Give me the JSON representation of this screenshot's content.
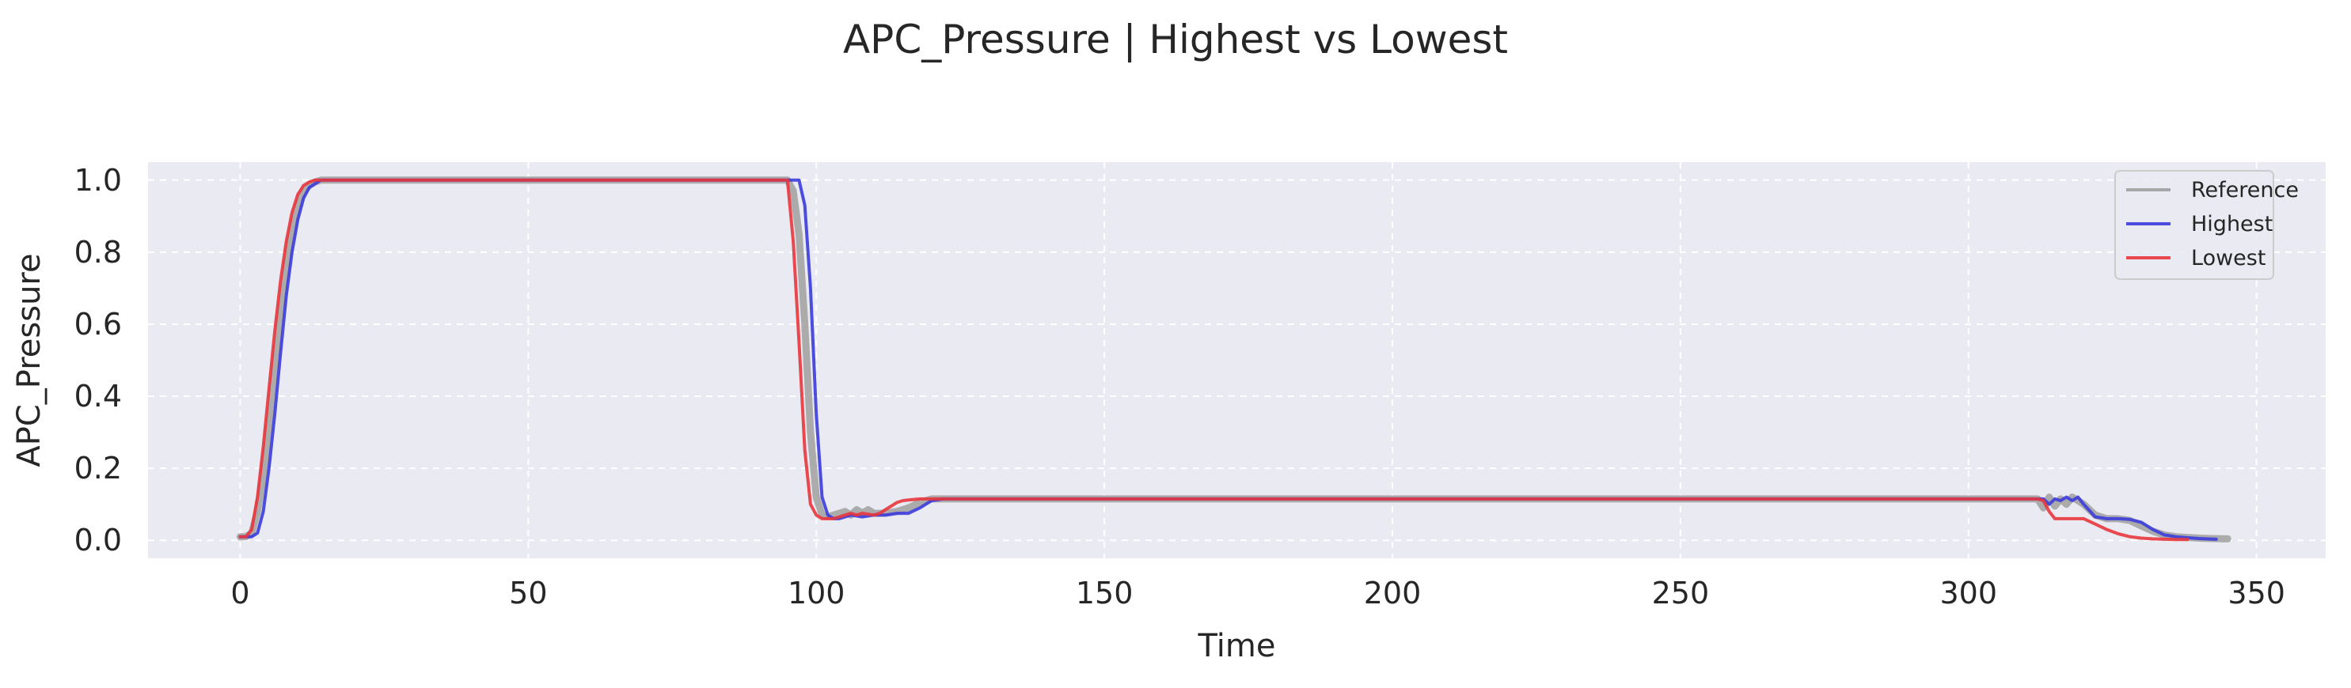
{
  "chart_data": {
    "type": "line",
    "title": "APC_Pressure | Highest vs Lowest",
    "xlabel": "Time",
    "ylabel": "APC_Pressure",
    "xlim": [
      -16,
      362
    ],
    "ylim": [
      -0.05,
      1.05
    ],
    "xticks": [
      0,
      50,
      100,
      150,
      200,
      250,
      300,
      350
    ],
    "yticks": [
      0.0,
      0.2,
      0.4,
      0.6,
      0.8,
      1.0
    ],
    "ytick_labels": [
      "0.0",
      "0.2",
      "0.4",
      "0.6",
      "0.8",
      "1.0"
    ],
    "grid": true,
    "legend_position": "top-right",
    "colors": {
      "background": "#eaeaf2",
      "reference": "#a0a0a0",
      "highest": "#3b3bdc",
      "lowest": "#e8363c"
    },
    "series": [
      {
        "name": "Reference",
        "color_key": "reference",
        "x": [
          0,
          1,
          2,
          3,
          4,
          5,
          6,
          7,
          8,
          9,
          10,
          11,
          12,
          13,
          14,
          15,
          16,
          18,
          20,
          50,
          95,
          96,
          97,
          98,
          99,
          100,
          101,
          102,
          103,
          104,
          105,
          106,
          107,
          108,
          109,
          110,
          112,
          114,
          116,
          118,
          120,
          122,
          150,
          200,
          250,
          300,
          312,
          313,
          314,
          315,
          316,
          317,
          318,
          319,
          320,
          322,
          324,
          326,
          328,
          330,
          332,
          334,
          336,
          338,
          340,
          342,
          345
        ],
        "y": [
          0.01,
          0.01,
          0.02,
          0.08,
          0.18,
          0.32,
          0.48,
          0.63,
          0.76,
          0.86,
          0.93,
          0.97,
          0.985,
          0.995,
          1.0,
          1.0,
          1.0,
          1.0,
          1.0,
          1.0,
          1.0,
          0.97,
          0.85,
          0.6,
          0.3,
          0.12,
          0.07,
          0.065,
          0.07,
          0.075,
          0.08,
          0.07,
          0.085,
          0.075,
          0.085,
          0.075,
          0.075,
          0.08,
          0.09,
          0.105,
          0.115,
          0.115,
          0.115,
          0.115,
          0.115,
          0.115,
          0.115,
          0.09,
          0.12,
          0.095,
          0.115,
          0.1,
          0.12,
          0.11,
          0.1,
          0.07,
          0.06,
          0.06,
          0.055,
          0.04,
          0.025,
          0.015,
          0.01,
          0.008,
          0.006,
          0.005,
          0.004
        ]
      },
      {
        "name": "Highest",
        "color_key": "highest",
        "x": [
          0,
          1,
          2,
          3,
          4,
          5,
          6,
          7,
          8,
          9,
          10,
          11,
          12,
          13,
          14,
          15,
          16,
          18,
          20,
          50,
          96,
          97,
          98,
          99,
          100,
          101,
          102,
          103,
          104,
          105,
          106,
          108,
          110,
          112,
          114,
          116,
          118,
          120,
          122,
          150,
          200,
          250,
          300,
          313,
          314,
          315,
          316,
          317,
          318,
          319,
          320,
          322,
          324,
          326,
          328,
          330,
          332,
          334,
          336,
          338,
          340,
          343
        ],
        "y": [
          0.01,
          0.01,
          0.01,
          0.02,
          0.08,
          0.2,
          0.35,
          0.52,
          0.68,
          0.8,
          0.89,
          0.95,
          0.98,
          0.99,
          1.0,
          1.0,
          1.0,
          1.0,
          1.0,
          1.0,
          1.0,
          1.0,
          0.93,
          0.7,
          0.35,
          0.12,
          0.07,
          0.06,
          0.06,
          0.065,
          0.07,
          0.065,
          0.07,
          0.07,
          0.075,
          0.075,
          0.09,
          0.11,
          0.115,
          0.115,
          0.115,
          0.115,
          0.115,
          0.115,
          0.1,
          0.115,
          0.11,
          0.12,
          0.11,
          0.12,
          0.1,
          0.065,
          0.06,
          0.06,
          0.058,
          0.05,
          0.03,
          0.015,
          0.01,
          0.007,
          0.005,
          0.003
        ]
      },
      {
        "name": "Lowest",
        "color_key": "lowest",
        "x": [
          0,
          1,
          2,
          3,
          4,
          5,
          6,
          7,
          8,
          9,
          10,
          11,
          12,
          13,
          14,
          15,
          16,
          18,
          20,
          50,
          95,
          96,
          97,
          98,
          99,
          100,
          101,
          102,
          103,
          104,
          105,
          106,
          107,
          108,
          110,
          111,
          112,
          113,
          114,
          115,
          116,
          118,
          120,
          150,
          200,
          250,
          300,
          312,
          313,
          314,
          315,
          316,
          318,
          320,
          322,
          324,
          326,
          328,
          330,
          332,
          334,
          336,
          338
        ],
        "y": [
          0.01,
          0.01,
          0.03,
          0.12,
          0.26,
          0.42,
          0.58,
          0.72,
          0.83,
          0.91,
          0.96,
          0.985,
          0.995,
          1.0,
          1.0,
          1.0,
          1.0,
          1.0,
          1.0,
          1.0,
          1.0,
          0.83,
          0.55,
          0.25,
          0.1,
          0.07,
          0.06,
          0.06,
          0.06,
          0.065,
          0.07,
          0.075,
          0.07,
          0.075,
          0.07,
          0.075,
          0.085,
          0.095,
          0.105,
          0.11,
          0.112,
          0.115,
          0.115,
          0.115,
          0.115,
          0.115,
          0.115,
          0.115,
          0.11,
          0.08,
          0.06,
          0.06,
          0.06,
          0.06,
          0.045,
          0.03,
          0.018,
          0.01,
          0.006,
          0.004,
          0.003,
          0.002,
          0.002
        ]
      }
    ]
  }
}
